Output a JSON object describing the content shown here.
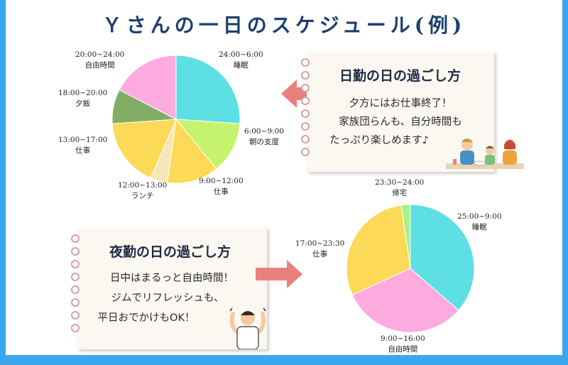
{
  "title": "Ｙさんの一日のスケジュール(例)",
  "day_note": {
    "heading": "日勤の日の過ごし方",
    "lines": [
      "夕方にはお仕事終了！",
      "家族団らんも、自分時間も",
      "たっぷり楽しめます♪"
    ]
  },
  "night_note": {
    "heading": "夜勤の日の過ごし方",
    "lines": [
      "日中はまるっと自由時間！",
      "ジムでリフレッシュも、",
      "平日おでかけもOK！"
    ]
  },
  "colors": {
    "frame": "#3aa8f0",
    "title": "#1c3f6e",
    "arrow": "#e8807e",
    "sleep": "#5ddfe3",
    "prep": "#c6f36d",
    "work": "#fcd956",
    "lunch": "#f6e6b8",
    "dinner": "#82ad64",
    "free": "#fdaadf",
    "home": "#a8f08a"
  },
  "icons": [
    "family-dinner-illustration",
    "flexing-man-illustration",
    "left-arrow-icon",
    "right-arrow-icon"
  ],
  "chart_data": [
    {
      "type": "pie",
      "name": "day-shift",
      "slices": [
        {
          "time": "24:00~6:00",
          "activity": "睡眠",
          "hours": 6,
          "color": "#5ddfe3"
        },
        {
          "time": "6:00~9:00",
          "activity": "朝の支度",
          "hours": 3,
          "color": "#c6f36d"
        },
        {
          "time": "9:00~12:00",
          "activity": "仕事",
          "hours": 3,
          "color": "#fcd956"
        },
        {
          "time": "12:00~13:00",
          "activity": "ランチ",
          "hours": 1,
          "color": "#f6e6b8"
        },
        {
          "time": "13:00~17:00",
          "activity": "仕事",
          "hours": 4,
          "color": "#fcd956"
        },
        {
          "time": "18:00~20:00",
          "activity": "夕飯",
          "hours": 2,
          "color": "#82ad64"
        },
        {
          "time": "20:00~24:00",
          "activity": "自由時間",
          "hours": 4,
          "color": "#fdaadf"
        }
      ]
    },
    {
      "type": "pie",
      "name": "night-shift",
      "slices": [
        {
          "time": "25:00~9:00",
          "activity": "睡眠",
          "hours": 8,
          "color": "#5ddfe3"
        },
        {
          "time": "9:00~16:00",
          "activity": "自由時間",
          "hours": 7,
          "color": "#fdaadf"
        },
        {
          "time": "17:00~23:30",
          "activity": "仕事",
          "hours": 6.5,
          "color": "#fcd956"
        },
        {
          "time": "23:30~24:00",
          "activity": "帰宅",
          "hours": 0.5,
          "color": "#a8f08a"
        }
      ]
    }
  ]
}
